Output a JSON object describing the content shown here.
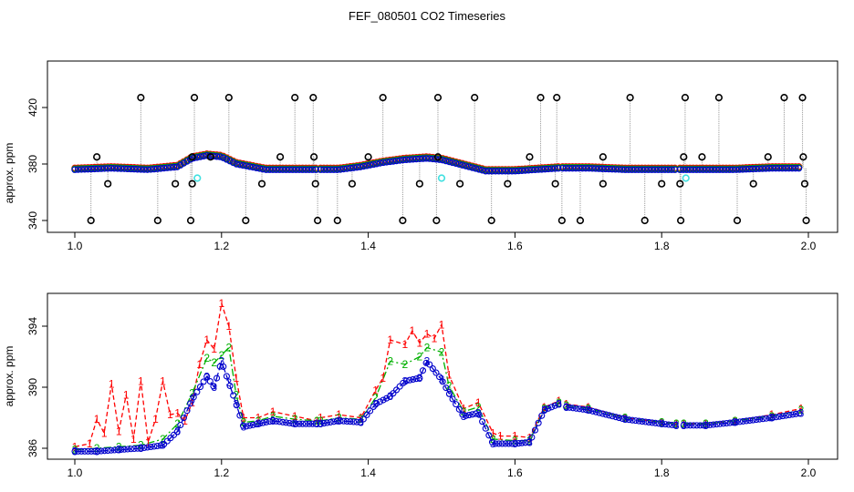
{
  "title": "FEF_080501  CO2 Timeseries",
  "colors": {
    "s1": "#ff0000",
    "s2": "#00b000",
    "s3": "#0000cc",
    "spike": "#000000",
    "cyan": "#40e0e0",
    "vline": "#999999"
  },
  "chart_data": [
    {
      "type": "scatter",
      "title": "FEF_080501  CO2 Timeseries",
      "xlabel": "",
      "ylabel": "approx. ppm",
      "xlim": [
        1.0,
        2.0
      ],
      "ylim": [
        335,
        430
      ],
      "x_ticks": [
        "1.0",
        "1.2",
        "1.4",
        "1.6",
        "1.8",
        "2.0"
      ],
      "y_ticks": [
        "340",
        "380",
        "420"
      ],
      "grid": false,
      "segments": [
        {
          "x": [
            1.0,
            1.05,
            1.1,
            1.14,
            1.16,
            1.18,
            1.2,
            1.22,
            1.26,
            1.3,
            1.33
          ],
          "y": [
            376,
            377,
            376,
            378,
            384,
            386,
            385,
            380,
            376,
            376,
            376
          ]
        },
        {
          "x": [
            1.335,
            1.36,
            1.39,
            1.42,
            1.45,
            1.48,
            1.5,
            1.53,
            1.56,
            1.6,
            1.63,
            1.66
          ],
          "y": [
            376,
            376,
            378,
            381,
            383,
            384,
            383,
            379,
            375,
            375,
            376,
            377
          ]
        },
        {
          "x": [
            1.665,
            1.7,
            1.75,
            1.8,
            1.82
          ],
          "y": [
            377,
            377,
            376,
            376,
            376
          ]
        },
        {
          "x": [
            1.825,
            1.85,
            1.9,
            1.95,
            1.99
          ],
          "y": [
            376,
            376,
            376,
            377,
            377
          ]
        }
      ],
      "high_outliers": {
        "y": 427,
        "x": [
          1.09,
          1.163,
          1.21,
          1.3,
          1.325,
          1.42,
          1.495,
          1.545,
          1.635,
          1.657,
          1.757,
          1.832,
          1.878,
          1.967,
          1.992
        ]
      },
      "mid_outliers": {
        "y": 385,
        "x": [
          1.03,
          1.16,
          1.185,
          1.28,
          1.326,
          1.4,
          1.495,
          1.62,
          1.72,
          1.83,
          1.855,
          1.945,
          1.993
        ]
      },
      "low_outliers": {
        "y": 366,
        "x": [
          1.045,
          1.137,
          1.16,
          1.255,
          1.328,
          1.378,
          1.47,
          1.525,
          1.59,
          1.655,
          1.72,
          1.8,
          1.825,
          1.925,
          1.995
        ]
      },
      "bottom_outliers": {
        "y": 340,
        "x": [
          1.022,
          1.113,
          1.158,
          1.233,
          1.331,
          1.358,
          1.447,
          1.493,
          1.568,
          1.664,
          1.689,
          1.777,
          1.826,
          1.903,
          1.997
        ]
      },
      "cyan_points": [
        {
          "x": 1.167,
          "y": 370
        },
        {
          "x": 1.5,
          "y": 370
        },
        {
          "x": 1.833,
          "y": 370
        }
      ]
    },
    {
      "type": "line",
      "xlabel": "",
      "ylabel": "approx. ppm",
      "xlim": [
        1.0,
        2.0
      ],
      "ylim": [
        385.3,
        395.8
      ],
      "x_ticks": [
        "1.0",
        "1.2",
        "1.4",
        "1.6",
        "1.8",
        "2.0"
      ],
      "y_ticks": [
        "386",
        "390",
        "394"
      ],
      "grid": false,
      "series": [
        {
          "marker": "1",
          "segments": [
            {
              "x": [
                1.0,
                1.02,
                1.03,
                1.04,
                1.05,
                1.06,
                1.07,
                1.08,
                1.09,
                1.1,
                1.11,
                1.12,
                1.13,
                1.14,
                1.15,
                1.16,
                1.17,
                1.18,
                1.19,
                1.2,
                1.21,
                1.22,
                1.23,
                1.25,
                1.27,
                1.3,
                1.33
              ],
              "y": [
                386.1,
                386.3,
                387.9,
                387.0,
                390.2,
                387.1,
                389.5,
                386.6,
                390.4,
                386.4,
                387.9,
                390.4,
                388.2,
                388.3,
                387.8,
                389.0,
                391.5,
                393.1,
                392.5,
                395.5,
                394.0,
                390.6,
                388.0,
                388.0,
                388.4,
                388.1,
                387.8
              ]
            },
            {
              "x": [
                1.335,
                1.36,
                1.39,
                1.41,
                1.42,
                1.43,
                1.45,
                1.46,
                1.47,
                1.48,
                1.49,
                1.5,
                1.51,
                1.53,
                1.55,
                1.57,
                1.58,
                1.6,
                1.62,
                1.64,
                1.66
              ],
              "y": [
                388.0,
                388.2,
                388.0,
                389.8,
                390.6,
                393.1,
                392.8,
                393.7,
                392.9,
                393.5,
                393.2,
                394.1,
                390.8,
                388.6,
                389.0,
                387.0,
                386.8,
                386.8,
                386.7,
                388.7,
                389.1
              ]
            },
            {
              "x": [
                1.67,
                1.7,
                1.75,
                1.8,
                1.82
              ],
              "y": [
                388.9,
                388.7,
                388.0,
                387.7,
                387.6
              ]
            },
            {
              "x": [
                1.83,
                1.86,
                1.9,
                1.95,
                1.99
              ],
              "y": [
                387.6,
                387.6,
                387.8,
                388.2,
                388.6
              ]
            }
          ]
        },
        {
          "marker": "2",
          "segments": [
            {
              "x": [
                1.0,
                1.03,
                1.06,
                1.09,
                1.12,
                1.14,
                1.16,
                1.18,
                1.19,
                1.2,
                1.21,
                1.22,
                1.23,
                1.25,
                1.27,
                1.3,
                1.33
              ],
              "y": [
                385.9,
                386.0,
                386.1,
                386.2,
                386.6,
                387.6,
                389.6,
                391.9,
                391.6,
                392.1,
                392.6,
                389.5,
                387.7,
                387.8,
                388.1,
                387.9,
                387.8
              ]
            },
            {
              "x": [
                1.335,
                1.36,
                1.39,
                1.41,
                1.43,
                1.45,
                1.47,
                1.48,
                1.5,
                1.51,
                1.53,
                1.55,
                1.57,
                1.6,
                1.62,
                1.64,
                1.66
              ],
              "y": [
                387.8,
                388.0,
                387.9,
                389.3,
                391.7,
                391.5,
                392.0,
                392.6,
                392.3,
                390.1,
                388.4,
                388.7,
                386.6,
                386.5,
                386.5,
                388.6,
                389.0
              ]
            },
            {
              "x": [
                1.67,
                1.7,
                1.75,
                1.8,
                1.82
              ],
              "y": [
                388.8,
                388.6,
                388.0,
                387.7,
                387.6
              ]
            },
            {
              "x": [
                1.83,
                1.86,
                1.9,
                1.95,
                1.99
              ],
              "y": [
                387.6,
                387.6,
                387.8,
                388.1,
                388.5
              ]
            }
          ]
        },
        {
          "marker": "3",
          "segments": [
            {
              "x": [
                1.0,
                1.03,
                1.06,
                1.09,
                1.12,
                1.14,
                1.16,
                1.18,
                1.19,
                1.2,
                1.21,
                1.22,
                1.23,
                1.25,
                1.27,
                1.3,
                1.33
              ],
              "y": [
                385.8,
                385.8,
                385.9,
                386.0,
                386.2,
                387.1,
                389.2,
                390.7,
                390.0,
                391.7,
                390.3,
                388.9,
                387.4,
                387.6,
                387.8,
                387.6,
                387.6
              ]
            },
            {
              "x": [
                1.335,
                1.36,
                1.39,
                1.41,
                1.43,
                1.45,
                1.47,
                1.48,
                1.5,
                1.51,
                1.53,
                1.55,
                1.57,
                1.6,
                1.62,
                1.64,
                1.66
              ],
              "y": [
                387.6,
                387.8,
                387.7,
                388.9,
                389.4,
                390.4,
                390.6,
                391.7,
                390.5,
                389.6,
                388.1,
                388.3,
                386.3,
                386.3,
                386.4,
                388.5,
                388.9
              ]
            },
            {
              "x": [
                1.67,
                1.7,
                1.75,
                1.8,
                1.82
              ],
              "y": [
                388.7,
                388.5,
                387.9,
                387.6,
                387.5
              ]
            },
            {
              "x": [
                1.83,
                1.86,
                1.9,
                1.95,
                1.99
              ],
              "y": [
                387.5,
                387.5,
                387.7,
                388.0,
                388.3
              ]
            }
          ]
        }
      ]
    }
  ]
}
